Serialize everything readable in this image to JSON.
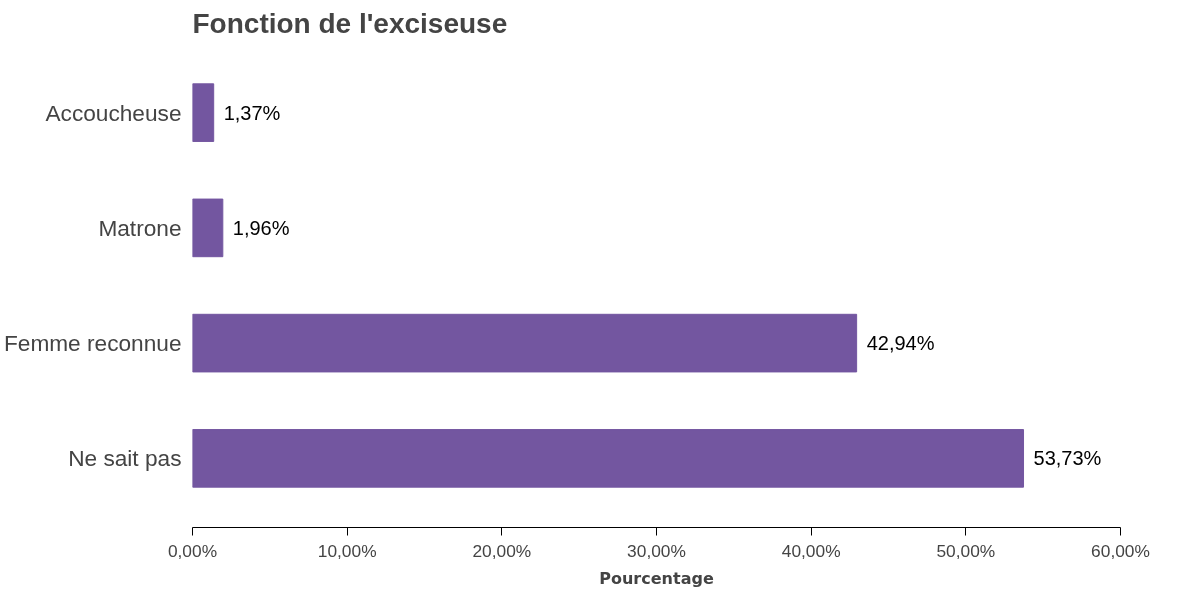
{
  "chart_data": {
    "type": "bar",
    "orientation": "horizontal",
    "title": "Fonction de l'exciseuse",
    "xlabel": "Pourcentage",
    "categories": [
      "Accoucheuse",
      "Matrone",
      "Femme reconnue",
      "Ne sait pas"
    ],
    "values": [
      1.37,
      1.96,
      42.94,
      53.73
    ],
    "value_labels": [
      "1,37%",
      "1,96%",
      "42,94%",
      "53,73%"
    ],
    "color": "#7356a0",
    "xlim": [
      0,
      60
    ],
    "xticks": [
      {
        "value": 0,
        "label": "0,00%"
      },
      {
        "value": 10,
        "label": "10,00%"
      },
      {
        "value": 20,
        "label": "20,00%"
      },
      {
        "value": 30,
        "label": "30,00%"
      },
      {
        "value": 40,
        "label": "40,00%"
      },
      {
        "value": 50,
        "label": "50,00%"
      },
      {
        "value": 60,
        "label": "60,00%"
      }
    ],
    "grid": false
  }
}
